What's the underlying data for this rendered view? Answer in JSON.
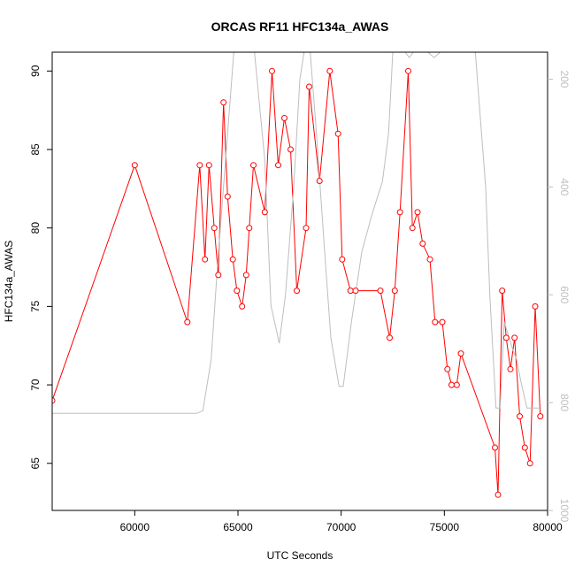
{
  "chart_data": {
    "type": "line",
    "title": "ORCAS RF11 HFC134a_AWAS",
    "xlabel": "UTC Seconds",
    "ylabel": "HFC134a_AWAS",
    "xlim": [
      56000,
      80000
    ],
    "ylim": [
      62.0,
      91.2
    ],
    "x_ticks": [
      60000,
      65000,
      70000,
      75000,
      80000
    ],
    "y_ticks": [
      65,
      70,
      75,
      80,
      85,
      90
    ],
    "y2_ticks": [
      200,
      400,
      600,
      800,
      1000
    ],
    "y2_range": [
      1000,
      150
    ],
    "grid": false,
    "series": [
      {
        "color": "#ff0000",
        "marker": "open-circle",
        "x": [
          56000,
          60000,
          62550,
          63150,
          63400,
          63600,
          63850,
          64050,
          64300,
          64500,
          64750,
          64950,
          65200,
          65400,
          65550,
          65750,
          66300,
          66650,
          66950,
          67250,
          67550,
          67850,
          68300,
          68450,
          68950,
          69450,
          69850,
          70050,
          70450,
          70700,
          71900,
          72350,
          72600,
          72850,
          73250,
          73450,
          73700,
          73950,
          74300,
          74550,
          74900,
          75150,
          75350,
          75600,
          75800,
          77450,
          77600,
          77800,
          78000,
          78200,
          78400,
          78650,
          78900,
          79150,
          79400,
          79650
        ],
        "y": [
          69,
          84,
          74,
          84,
          78,
          84,
          80,
          77,
          88,
          82,
          78,
          76,
          75,
          77,
          80,
          84,
          81,
          90,
          84,
          87,
          85,
          76,
          80,
          89,
          83,
          90,
          86,
          78,
          76,
          76,
          76,
          73,
          76,
          81,
          90,
          80,
          81,
          79,
          78,
          74,
          74,
          71,
          70,
          70,
          72,
          66,
          63,
          76,
          73,
          71,
          73,
          68,
          66,
          65,
          75,
          68
        ]
      },
      {
        "color": "#bebebe",
        "axis": "right",
        "x": [
          56000,
          63000,
          63300,
          63700,
          64000,
          64500,
          64800,
          65400,
          65800,
          66300,
          66600,
          67000,
          67300,
          67700,
          68000,
          68200,
          68500,
          68800,
          69200,
          69500,
          69900,
          70100,
          70500,
          71000,
          71500,
          72000,
          72300,
          72500,
          72700,
          72900,
          73100,
          73300,
          73500,
          73700,
          73900,
          74200,
          74500,
          74800,
          75200,
          75600,
          76000,
          76500,
          77000,
          77200,
          77500,
          77700,
          77900,
          78300,
          78500,
          78700,
          79000,
          79400,
          79700
        ],
        "y": [
          820,
          820,
          815,
          720,
          550,
          300,
          150,
          150,
          150,
          350,
          620,
          690,
          600,
          400,
          200,
          150,
          150,
          300,
          520,
          680,
          770,
          770,
          650,
          520,
          450,
          390,
          300,
          150,
          150,
          150,
          150,
          160,
          150,
          150,
          150,
          150,
          160,
          150,
          150,
          150,
          150,
          150,
          400,
          600,
          810,
          810,
          650,
          700,
          720,
          760,
          810,
          810,
          810
        ]
      }
    ]
  }
}
